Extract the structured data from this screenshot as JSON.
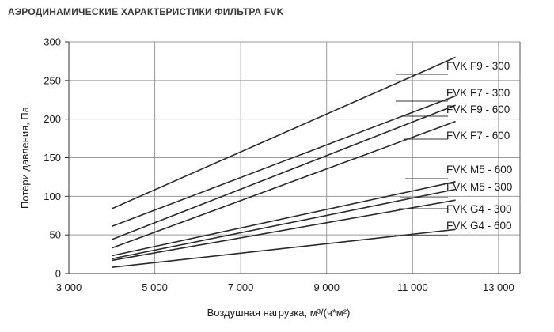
{
  "page": {
    "title": "АЭРОДИНАМИЧЕСКИЕ ХАРАКТЕРИСТИКИ ФИЛЬТРА FVK"
  },
  "chart_data": {
    "type": "line",
    "title": "АЭРОДИНАМИЧЕСКИЕ ХАРАКТЕРИСТИКИ ФИЛЬТРА FVK",
    "xlabel": "Воздушная нагрузка, м³/(ч*м²)",
    "ylabel": "Потери давления, Па",
    "xlim": [
      3000,
      13500
    ],
    "ylim": [
      0,
      300
    ],
    "x_ticks": [
      3000,
      5000,
      7000,
      9000,
      11000,
      13000
    ],
    "x_tick_labels": [
      "3 000",
      "5 000",
      "7 000",
      "9 000",
      "11 000",
      "13 000"
    ],
    "y_ticks": [
      0,
      50,
      100,
      150,
      200,
      250,
      300
    ],
    "y_tick_labels": [
      "0",
      "50",
      "100",
      "150",
      "200",
      "250",
      "300"
    ],
    "grid": true,
    "legend": "right, inline labels with leader lines",
    "line_color": "#2a2a2a",
    "grid_color": "#9a9a9a",
    "series": [
      {
        "name": "FVK F9 - 300",
        "x": [
          4000,
          12000
        ],
        "y": [
          84,
          280
        ]
      },
      {
        "name": "FVK F7 - 300",
        "x": [
          4000,
          12000
        ],
        "y": [
          61,
          230
        ]
      },
      {
        "name": "FVK F9 - 600",
        "x": [
          4000,
          12000
        ],
        "y": [
          44,
          218
        ]
      },
      {
        "name": "FVK F7 - 600",
        "x": [
          4000,
          12000
        ],
        "y": [
          33,
          197
        ]
      },
      {
        "name": "FVK M5 - 600",
        "x": [
          4000,
          12000
        ],
        "y": [
          23,
          119
        ]
      },
      {
        "name": "FVK M5 - 300",
        "x": [
          4000,
          12000
        ],
        "y": [
          19,
          109
        ]
      },
      {
        "name": "FVK G4 - 300",
        "x": [
          4000,
          12000
        ],
        "y": [
          17,
          95
        ]
      },
      {
        "name": "FVK G4 - 600",
        "x": [
          4000,
          12000
        ],
        "y": [
          8,
          57
        ]
      }
    ]
  }
}
